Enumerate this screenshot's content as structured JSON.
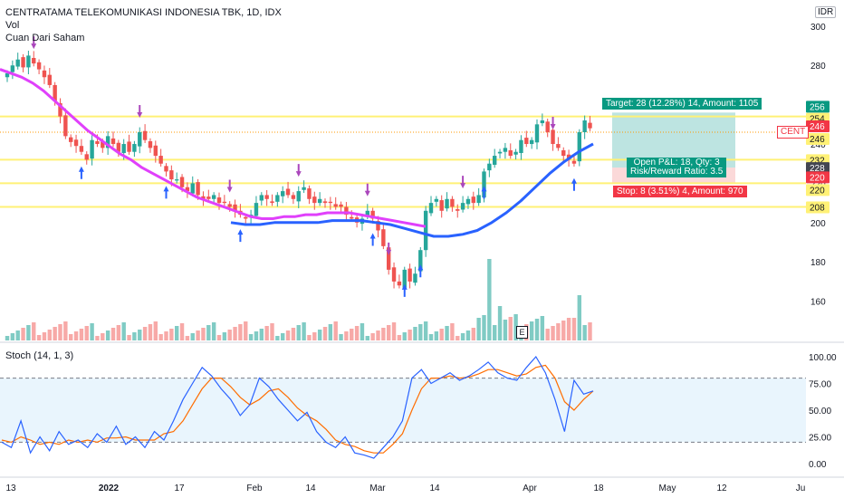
{
  "header": {
    "symbol_line": "CENTRATAMA TELEKOMUNIKASI INDONESIA TBK, 1D, IDX",
    "vol_label": "Vol",
    "indicator_label": "Cuan Dari Saham",
    "currency": "IDR"
  },
  "stoch": {
    "label": "Stoch (14, 1, 3)"
  },
  "earnings_marker": "E",
  "trade": {
    "target_label": "Target: 28 (12.28%) 14, Amount: 1105",
    "pnl_label": "Open P&L: 18, Qty: 3",
    "rr_label": "Risk/Reward Ratio: 3.5",
    "stop_label": "Stop: 8 (3.51%) 4, Amount: 970",
    "entry": 228,
    "target": 256,
    "stop": 220
  },
  "price_axis": {
    "ticks": [
      "300",
      "280",
      "260",
      "240",
      "220",
      "200",
      "180",
      "160"
    ],
    "badges": [
      {
        "text": "256",
        "bg": "#089981"
      },
      {
        "text": "254",
        "bg": "#ffffff"
      },
      {
        "text": "246",
        "bg": "#f23645"
      },
      {
        "text": "246",
        "bg": "#ffffff"
      },
      {
        "text": "232",
        "bg": "#ffffff"
      },
      {
        "text": "228",
        "bg": "#434651"
      },
      {
        "text": "220",
        "bg": "#f23645"
      },
      {
        "text": "220",
        "bg": "#ffffff"
      },
      {
        "text": "208",
        "bg": "#ffffff"
      }
    ],
    "symbol_tag": "CENT"
  },
  "stoch_axis": {
    "ticks": [
      "100.00",
      "75.00",
      "50.00",
      "25.00",
      "0.00"
    ]
  },
  "time_axis": {
    "ticks": [
      "13",
      "2022",
      "17",
      "Feb",
      "14",
      "Mar",
      "14",
      "Apr",
      "18",
      "May",
      "12",
      "Ju"
    ]
  },
  "colors": {
    "up": "#26a69a",
    "down": "#ef5350",
    "ma_pink": "#e040fb",
    "ma_blue": "#2962ff",
    "hline": "#fff176",
    "stoch_k": "#2962ff",
    "stoch_d": "#ff6d00"
  },
  "chart_data": {
    "type": "candlestick",
    "title": "CENTRATAMA TELEKOMUNIKASI INDONESIA TBK, 1D, IDX",
    "ylim": [
      140,
      305
    ],
    "horizontal_levels": [
      254,
      246,
      232,
      220,
      208
    ],
    "close": [
      276,
      280,
      283,
      279,
      285,
      281,
      278,
      274,
      270,
      262,
      254,
      244,
      241,
      239,
      236,
      232,
      242,
      240,
      238,
      244,
      240,
      236,
      240,
      236,
      240,
      246,
      242,
      238,
      234,
      230,
      226,
      222,
      222,
      218,
      216,
      220,
      214,
      212,
      212,
      214,
      210,
      210,
      208,
      206,
      204,
      202,
      204,
      210,
      214,
      212,
      210,
      214,
      216,
      214,
      212,
      216,
      218,
      212,
      210,
      212,
      210,
      210,
      208,
      208,
      204,
      202,
      200,
      202,
      206,
      202,
      196,
      188,
      176,
      170,
      168,
      176,
      170,
      174,
      186,
      206,
      210,
      212,
      206,
      212,
      208,
      206,
      210,
      212,
      210,
      214,
      226,
      230,
      234,
      236,
      238,
      234,
      236,
      242,
      240,
      242,
      250,
      252,
      246,
      240,
      238,
      234,
      232,
      230,
      246,
      252,
      248
    ],
    "ma_pink": [
      278,
      276,
      274,
      271,
      267,
      262,
      257,
      252,
      247,
      243,
      239,
      235,
      232,
      228,
      225,
      222,
      219,
      216,
      213,
      211,
      209,
      207,
      205,
      203,
      202,
      202,
      203,
      203,
      204,
      204,
      205,
      205,
      205,
      204,
      203,
      202,
      201,
      200,
      199,
      198
    ],
    "ma_blue": [
      200,
      199,
      199,
      200,
      200,
      200,
      200,
      201,
      201,
      201,
      200,
      199,
      197,
      195,
      193,
      193,
      194,
      196,
      200,
      205,
      211,
      218,
      225,
      231,
      236,
      240
    ],
    "stoch_k": [
      20,
      15,
      40,
      10,
      25,
      12,
      30,
      18,
      22,
      15,
      28,
      20,
      35,
      18,
      25,
      15,
      30,
      22,
      40,
      60,
      75,
      90,
      82,
      70,
      60,
      45,
      55,
      80,
      72,
      60,
      50,
      40,
      48,
      30,
      20,
      15,
      25,
      10,
      8,
      5,
      15,
      25,
      40,
      80,
      88,
      75,
      80,
      85,
      78,
      82,
      88,
      95,
      85,
      80,
      78,
      90,
      100,
      85,
      60,
      30,
      78,
      65,
      68
    ],
    "stoch_d": [
      22,
      20,
      25,
      22,
      18,
      20,
      18,
      22,
      20,
      22,
      20,
      24,
      24,
      25,
      22,
      22,
      22,
      28,
      30,
      40,
      55,
      70,
      80,
      80,
      72,
      62,
      55,
      60,
      68,
      70,
      62,
      52,
      45,
      40,
      32,
      22,
      18,
      16,
      12,
      10,
      10,
      18,
      28,
      50,
      70,
      80,
      80,
      82,
      80,
      81,
      84,
      88,
      88,
      85,
      82,
      84,
      90,
      92,
      80,
      58,
      50,
      60,
      68
    ]
  }
}
